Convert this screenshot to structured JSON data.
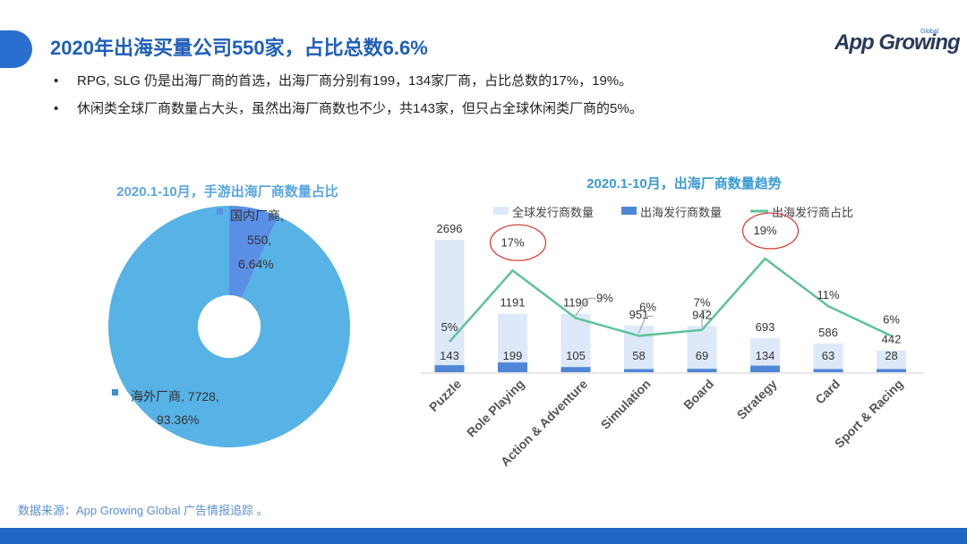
{
  "header": {
    "title": "2020年出海买量公司550家，占比总数6.6%",
    "logo_app": "App Growing",
    "logo_global": "Global"
  },
  "bullets": [
    "RPG, SLG 仍是出海厂商的首选，出海厂商分别有199，134家厂商，占比总数的17%，19%。",
    "休闲类全球厂商数量占大头，虽然出海厂商数也不少，共143家，但只占全球休闲类厂商的5%。"
  ],
  "bullet_symbol": "•",
  "source": "数据来源：App Growing Global 广告情报追踪 。",
  "colors": {
    "title": "#1f5fb8",
    "overseas": "#57b2e6",
    "domestic": "#5b8fe6",
    "global_bar": "#dde9f8",
    "overseas_bar": "#4f86d8",
    "ratio_line": "#5ec29a",
    "highlight_circle": "#d9413a",
    "footer": "#1f66c2"
  },
  "chart_data": [
    {
      "type": "pie",
      "title": "2020.1-10月，手游出海厂商数量占比",
      "slices": [
        {
          "name": "国内厂商",
          "value": 550,
          "percent": "6.64%",
          "value_label": "550,",
          "name_label": "国内厂商,"
        },
        {
          "name": "海外厂商",
          "value": 7728,
          "percent": "93.36%",
          "name_label": "海外厂商, 7728,"
        }
      ],
      "donut_hole_ratio": 0.26
    },
    {
      "type": "bar",
      "title": "2020.1-10月，出海厂商数量趋势",
      "legend": [
        "全球发行商数量",
        "出海发行商数量",
        "出海发行商占比"
      ],
      "categories": [
        "Puzzle",
        "Role Playing",
        "Action & Adventure",
        "Simulation",
        "Board",
        "Strategy",
        "Card",
        "Sport & Racing"
      ],
      "series": [
        {
          "name": "全球发行商数量",
          "values": [
            2696,
            1191,
            1190,
            951,
            942,
            693,
            586,
            442
          ]
        },
        {
          "name": "出海发行商数量",
          "values": [
            143,
            199,
            105,
            58,
            69,
            134,
            63,
            28
          ]
        },
        {
          "name": "出海发行商占比",
          "type": "line",
          "values": [
            5,
            17,
            9,
            6,
            7,
            19,
            11,
            6
          ],
          "labels": [
            "5%",
            "17%",
            "9%",
            "6%",
            "7%",
            "19%",
            "11%",
            "6%"
          ]
        }
      ],
      "highlighted": [
        "Role Playing",
        "Strategy"
      ],
      "ylim": [
        0,
        2696
      ],
      "ratio_range": [
        3,
        21
      ]
    }
  ]
}
